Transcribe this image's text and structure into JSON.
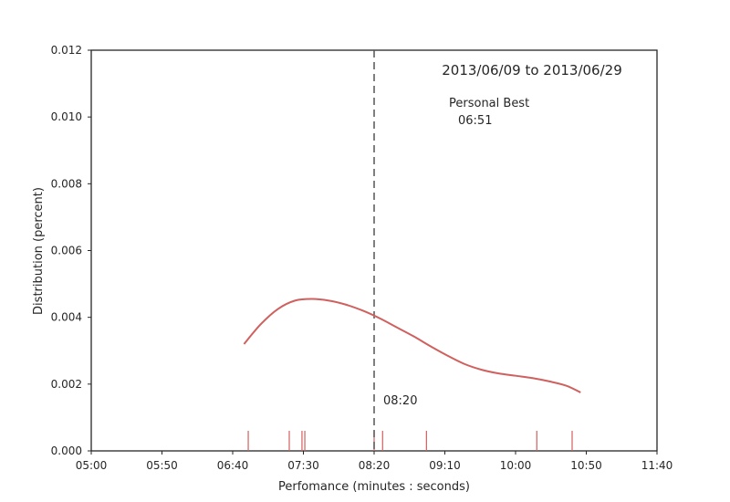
{
  "chart_data": {
    "type": "line",
    "title": "2013/06/09 to 2013/06/29",
    "xlabel": "Perfomance (minutes : seconds)",
    "ylabel": "Distribution (percent)",
    "xlim_seconds": [
      300,
      700
    ],
    "ylim": [
      0,
      0.012
    ],
    "x_ticks": [
      {
        "value": 300,
        "label": "05:00"
      },
      {
        "value": 350,
        "label": "05:50"
      },
      {
        "value": 400,
        "label": "06:40"
      },
      {
        "value": 450,
        "label": "07:30"
      },
      {
        "value": 500,
        "label": "08:20"
      },
      {
        "value": 550,
        "label": "09:10"
      },
      {
        "value": 600,
        "label": "10:00"
      },
      {
        "value": 650,
        "label": "10:50"
      },
      {
        "value": 700,
        "label": "11:40"
      }
    ],
    "y_ticks": [
      {
        "value": 0,
        "label": "0.000"
      },
      {
        "value": 0.002,
        "label": "0.002"
      },
      {
        "value": 0.004,
        "label": "0.004"
      },
      {
        "value": 0.006,
        "label": "0.006"
      },
      {
        "value": 0.008,
        "label": "0.008"
      },
      {
        "value": 0.01,
        "label": "0.010"
      },
      {
        "value": 0.012,
        "label": "0.012"
      }
    ],
    "density_curve": {
      "color": "#d0605e",
      "points": [
        [
          408,
          0.0032
        ],
        [
          420,
          0.0038
        ],
        [
          432,
          0.00425
        ],
        [
          444,
          0.0045
        ],
        [
          456,
          0.00455
        ],
        [
          468,
          0.0045
        ],
        [
          480,
          0.00438
        ],
        [
          492,
          0.0042
        ],
        [
          504,
          0.00397
        ],
        [
          516,
          0.0037
        ],
        [
          528,
          0.00343
        ],
        [
          540,
          0.00313
        ],
        [
          552,
          0.00285
        ],
        [
          564,
          0.0026
        ],
        [
          576,
          0.00243
        ],
        [
          588,
          0.00232
        ],
        [
          600,
          0.00225
        ],
        [
          612,
          0.00218
        ],
        [
          624,
          0.00208
        ],
        [
          636,
          0.00195
        ],
        [
          646,
          0.00175
        ]
      ]
    },
    "rug_values_seconds": [
      411,
      440,
      449,
      451,
      500,
      506,
      537,
      615,
      640
    ],
    "rug_color": "#d0605e",
    "vertical_line": {
      "value": 500,
      "color": "#555555",
      "style": "dashed"
    },
    "annotations": {
      "personal_best_label": "Personal Best",
      "personal_best_value": "06:51",
      "median_label": "08:20"
    }
  }
}
